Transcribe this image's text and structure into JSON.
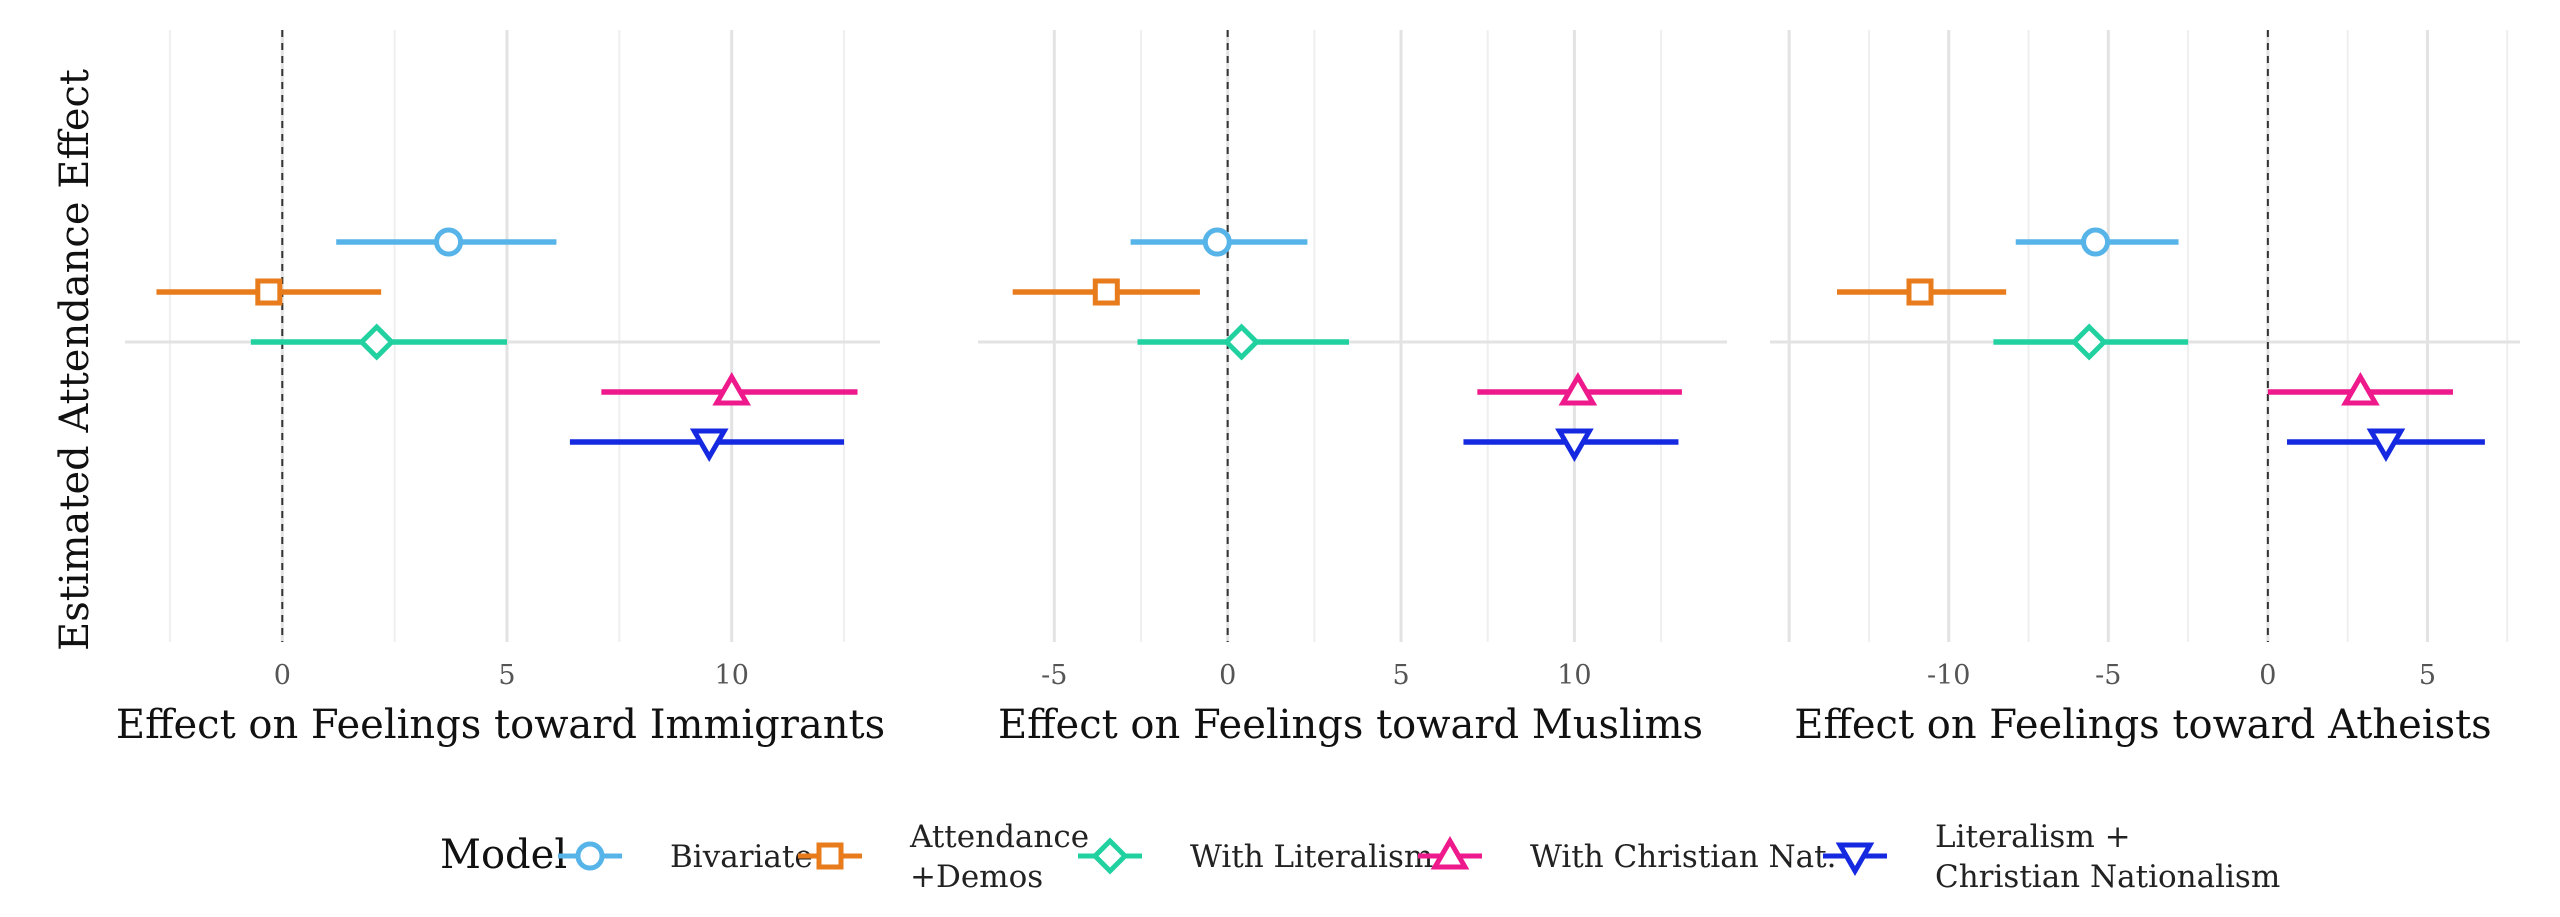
{
  "chart_data": {
    "type": "scatter",
    "ylabel": "Estimated Attendance Effect",
    "legend": {
      "title": "Model",
      "placement": "bottom",
      "entries": [
        {
          "name": "Bivariate",
          "lines": [
            "Bivariate"
          ],
          "color": "#56B4E9",
          "shape": "circle"
        },
        {
          "name": "Attendance +Demos",
          "lines": [
            "Attendance",
            "+Demos"
          ],
          "color": "#E87B1B",
          "shape": "square"
        },
        {
          "name": "With Literalism",
          "lines": [
            "With Literalism"
          ],
          "color": "#21D19F",
          "shape": "diamond"
        },
        {
          "name": "With Christian Nat.",
          "lines": [
            "With Christian Nat."
          ],
          "color": "#EE1A8C",
          "shape": "triangle-up"
        },
        {
          "name": "Literalism + Christian Nationalism",
          "lines": [
            "Literalism +",
            "Christian Nationalism"
          ],
          "color": "#1529E0",
          "shape": "triangle-down"
        }
      ]
    },
    "panels": [
      {
        "xlabel": "Effect on Feelings toward Immigrants",
        "xlim": [
          -3.5,
          13.3
        ],
        "xticks": [
          0,
          5,
          10
        ],
        "xtick_labels": [
          "0",
          "5",
          "10"
        ],
        "grid": true,
        "reference_line": 0,
        "estimates": [
          {
            "model": "Bivariate",
            "estimate": 3.7,
            "lower": 1.2,
            "upper": 6.1
          },
          {
            "model": "Attendance +Demos",
            "estimate": -0.3,
            "lower": -2.8,
            "upper": 2.2
          },
          {
            "model": "With Literalism",
            "estimate": 2.1,
            "lower": -0.7,
            "upper": 5.0
          },
          {
            "model": "With Christian Nat.",
            "estimate": 10.0,
            "lower": 7.1,
            "upper": 12.8
          },
          {
            "model": "Literalism + Christian Nationalism",
            "estimate": 9.5,
            "lower": 6.4,
            "upper": 12.5
          }
        ]
      },
      {
        "xlabel": "Effect on Feelings toward Muslims",
        "xlim": [
          -7.2,
          14.4
        ],
        "xticks": [
          -5,
          0,
          5,
          10
        ],
        "xtick_labels": [
          "-5",
          "0",
          "5",
          "10"
        ],
        "grid": true,
        "reference_line": 0,
        "estimates": [
          {
            "model": "Bivariate",
            "estimate": -0.3,
            "lower": -2.8,
            "upper": 2.3
          },
          {
            "model": "Attendance +Demos",
            "estimate": -3.5,
            "lower": -6.2,
            "upper": -0.8
          },
          {
            "model": "With Literalism",
            "estimate": 0.4,
            "lower": -2.6,
            "upper": 3.5
          },
          {
            "model": "With Christian Nat.",
            "estimate": 10.1,
            "lower": 7.2,
            "upper": 13.1
          },
          {
            "model": "Literalism + Christian Nationalism",
            "estimate": 10.0,
            "lower": 6.8,
            "upper": 13.0
          }
        ]
      },
      {
        "xlabel": "Effect on Feelings toward Atheists",
        "xlim": [
          -15.6,
          7.9
        ],
        "xticks": [
          -10,
          -5,
          0,
          5
        ],
        "xtick_labels": [
          "-10",
          "-5",
          "0",
          "5"
        ],
        "grid": true,
        "reference_line": 0,
        "estimates": [
          {
            "model": "Bivariate",
            "estimate": -5.4,
            "lower": -7.9,
            "upper": -2.8
          },
          {
            "model": "Attendance +Demos",
            "estimate": -10.9,
            "lower": -13.5,
            "upper": -8.2
          },
          {
            "model": "With Literalism",
            "estimate": -5.6,
            "lower": -8.6,
            "upper": -2.5
          },
          {
            "model": "With Christian Nat.",
            "estimate": 2.9,
            "lower": 0.0,
            "upper": 5.8
          },
          {
            "model": "Literalism + Christian Nationalism",
            "estimate": 3.7,
            "lower": 0.6,
            "upper": 6.8
          }
        ]
      }
    ]
  }
}
